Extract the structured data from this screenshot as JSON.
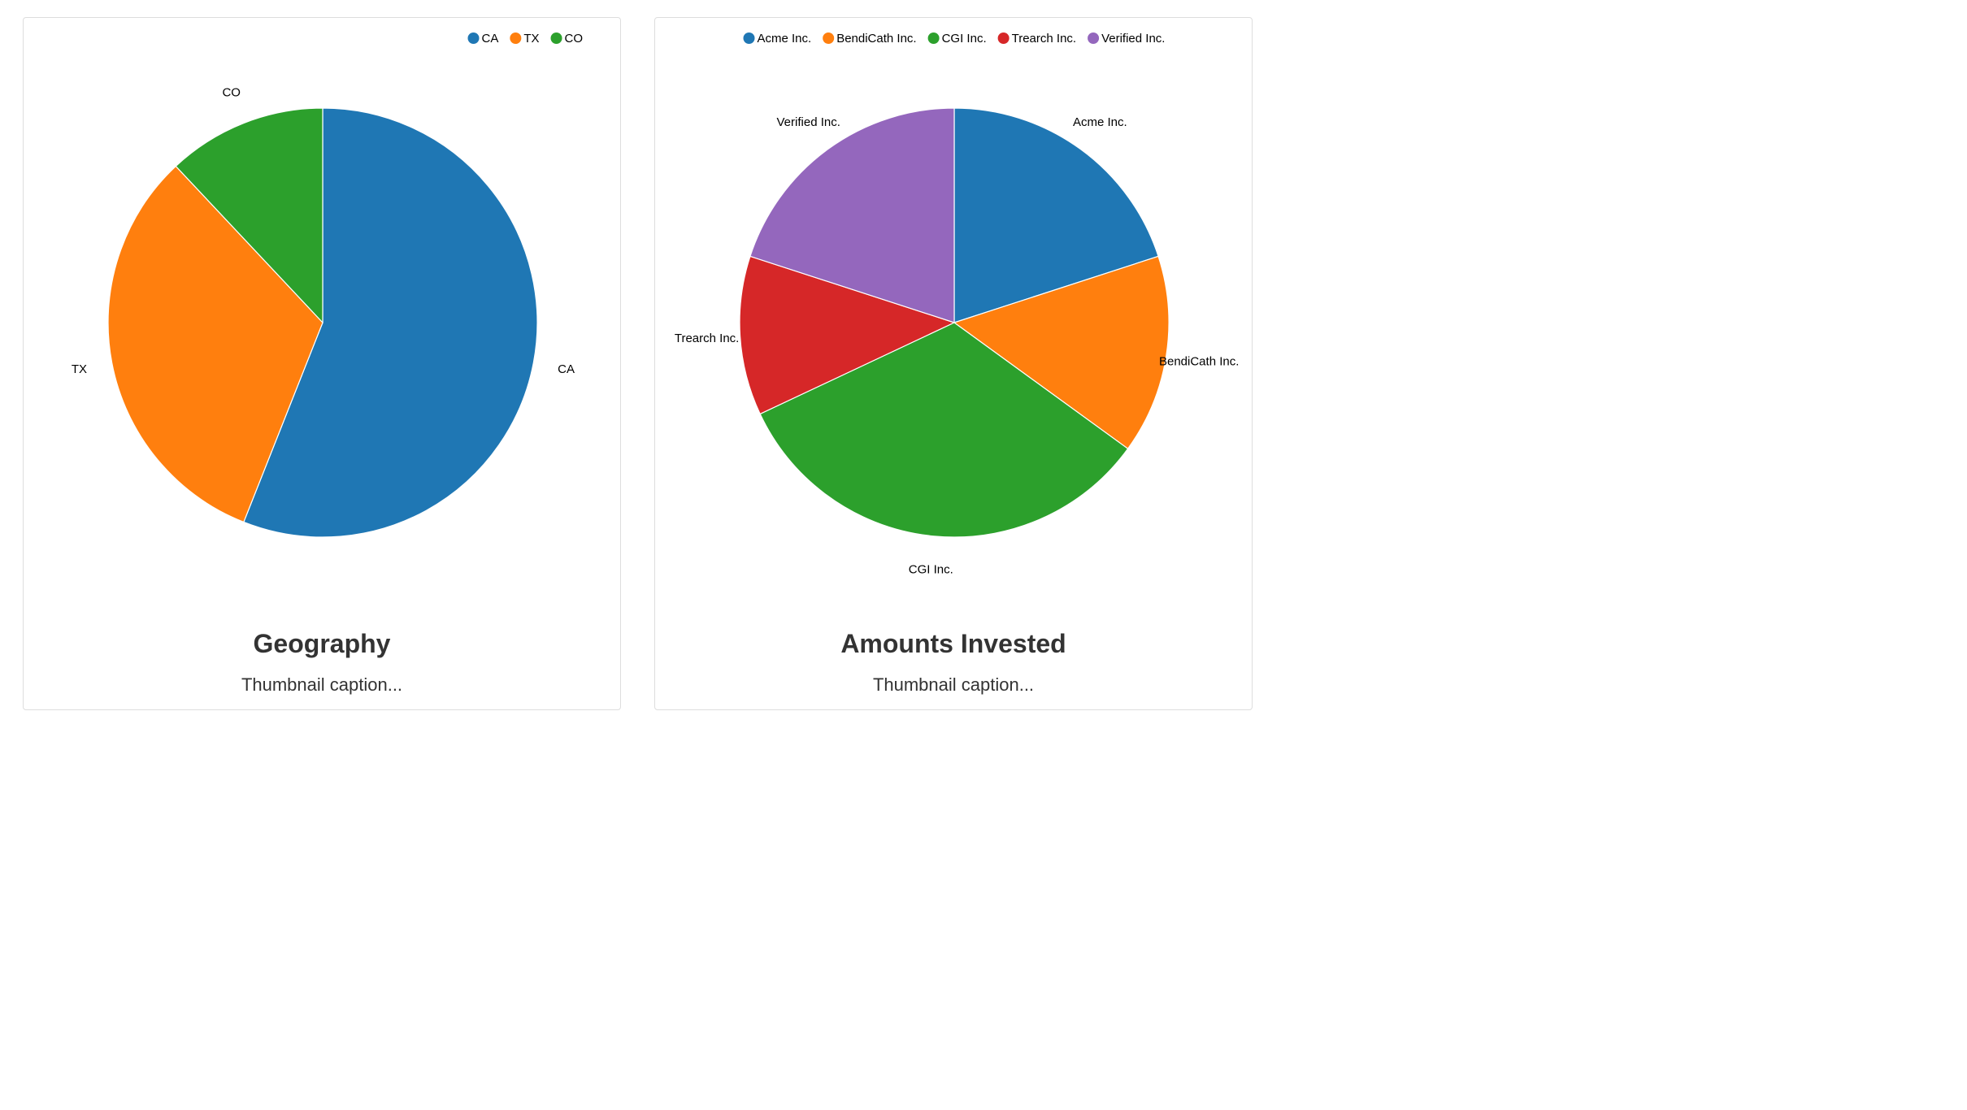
{
  "thumbnails": [
    {
      "title": "Geography",
      "caption": "Thumbnail caption...",
      "chart_data": {
        "type": "pie",
        "categories": [
          "CA",
          "TX",
          "CO"
        ],
        "values": [
          56,
          32,
          12
        ],
        "colors": [
          "#1f77b4",
          "#ff7f0e",
          "#2ca02c"
        ],
        "legend": "top-right"
      }
    },
    {
      "title": "Amounts Invested",
      "caption": "Thumbnail caption...",
      "chart_data": {
        "type": "pie",
        "categories": [
          "Acme Inc.",
          "BendiCath Inc.",
          "CGI Inc.",
          "Trearch Inc.",
          "Verified Inc."
        ],
        "values": [
          20,
          15,
          33,
          12,
          20
        ],
        "colors": [
          "#1f77b4",
          "#ff7f0e",
          "#2ca02c",
          "#d62728",
          "#9467bd"
        ],
        "legend": "top"
      }
    }
  ]
}
